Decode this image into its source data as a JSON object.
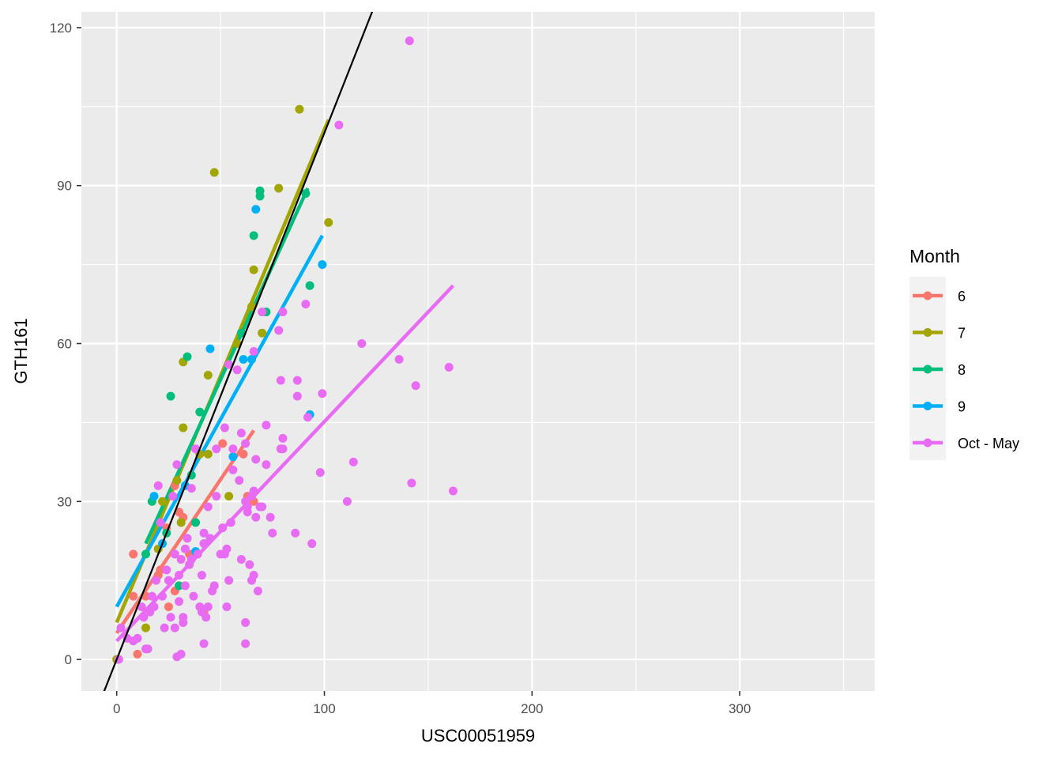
{
  "chart_data": {
    "type": "scatter",
    "xlabel": "USC00051959",
    "ylabel": "GTH161",
    "xlim": [
      -17,
      365
    ],
    "ylim": [
      -6,
      123
    ],
    "x_ticks": [
      0,
      100,
      200,
      300
    ],
    "y_ticks": [
      0,
      30,
      60,
      90,
      120
    ],
    "grid": true,
    "legend": {
      "title": "Month",
      "position": "right"
    },
    "reference_line": {
      "slope": 1,
      "intercept": 0,
      "color": "#000000"
    },
    "series": [
      {
        "name": "6",
        "color": "#F8766D",
        "fit": [
          [
            0,
            5.0
          ],
          [
            66,
            43.5
          ]
        ],
        "points": [
          [
            8,
            20
          ],
          [
            10,
            1
          ],
          [
            8,
            12
          ],
          [
            20,
            16
          ],
          [
            21,
            17
          ],
          [
            24,
            25
          ],
          [
            28,
            33
          ],
          [
            30,
            28
          ],
          [
            32,
            27
          ],
          [
            35,
            20
          ],
          [
            42,
            9
          ],
          [
            51,
            41
          ],
          [
            61,
            39
          ],
          [
            63,
            31
          ],
          [
            66,
            30
          ],
          [
            25,
            10
          ],
          [
            28,
            13
          ],
          [
            14,
            12
          ]
        ]
      },
      {
        "name": "7",
        "color": "#A3A500",
        "fit": [
          [
            0,
            7.0
          ],
          [
            102,
            102.5
          ]
        ],
        "points": [
          [
            0,
            0
          ],
          [
            14,
            6
          ],
          [
            22,
            30
          ],
          [
            29,
            34
          ],
          [
            31,
            26
          ],
          [
            32,
            44
          ],
          [
            32,
            56.5
          ],
          [
            44,
            39
          ],
          [
            44,
            54
          ],
          [
            47,
            92.5
          ],
          [
            54,
            31
          ],
          [
            58,
            60
          ],
          [
            65,
            67
          ],
          [
            66,
            74
          ],
          [
            70,
            62
          ],
          [
            78,
            89.5
          ],
          [
            88,
            104.5
          ],
          [
            102,
            83
          ],
          [
            20,
            21
          ],
          [
            40,
            39
          ]
        ]
      },
      {
        "name": "8",
        "color": "#00BF7D",
        "fit": [
          [
            14,
            22.0
          ],
          [
            92,
            89.5
          ]
        ],
        "points": [
          [
            14,
            20
          ],
          [
            17,
            30
          ],
          [
            24,
            24
          ],
          [
            26,
            50
          ],
          [
            30,
            14
          ],
          [
            34,
            57.5
          ],
          [
            36,
            35
          ],
          [
            40,
            47
          ],
          [
            38,
            26
          ],
          [
            60,
            62
          ],
          [
            66,
            80.5
          ],
          [
            69,
            88
          ],
          [
            69,
            89
          ],
          [
            72,
            66
          ],
          [
            91,
            88.5
          ],
          [
            93,
            71
          ]
        ]
      },
      {
        "name": "9",
        "color": "#00B0F6",
        "fit": [
          [
            0,
            10.0
          ],
          [
            99,
            80.5
          ]
        ],
        "points": [
          [
            18,
            31
          ],
          [
            22,
            22
          ],
          [
            33,
            33
          ],
          [
            38,
            20.5
          ],
          [
            45,
            59
          ],
          [
            56,
            38.5
          ],
          [
            61,
            57
          ],
          [
            65,
            57
          ],
          [
            67,
            85.5
          ],
          [
            93,
            46.5
          ],
          [
            99,
            75
          ]
        ]
      },
      {
        "name": "Oct - May",
        "color": "#E76BF3",
        "fit": [
          [
            0,
            3.5
          ],
          [
            162,
            71.0
          ]
        ],
        "points": [
          [
            1,
            0
          ],
          [
            2,
            6
          ],
          [
            5,
            4
          ],
          [
            8,
            3.5
          ],
          [
            10,
            4
          ],
          [
            12,
            10
          ],
          [
            13,
            8
          ],
          [
            14,
            2
          ],
          [
            15,
            2
          ],
          [
            16,
            9
          ],
          [
            17,
            12
          ],
          [
            18,
            10
          ],
          [
            19,
            15
          ],
          [
            20,
            33
          ],
          [
            21,
            26
          ],
          [
            22,
            12
          ],
          [
            23,
            6
          ],
          [
            24,
            17
          ],
          [
            25,
            15
          ],
          [
            26,
            8
          ],
          [
            27,
            31
          ],
          [
            28,
            20
          ],
          [
            28,
            6
          ],
          [
            29,
            37
          ],
          [
            29,
            0.5
          ],
          [
            30,
            16
          ],
          [
            30,
            11
          ],
          [
            31,
            1
          ],
          [
            31,
            19
          ],
          [
            32,
            8
          ],
          [
            32,
            7
          ],
          [
            33,
            21
          ],
          [
            33,
            14
          ],
          [
            34,
            23
          ],
          [
            35,
            18
          ],
          [
            36,
            32.5
          ],
          [
            36,
            19
          ],
          [
            37,
            12
          ],
          [
            38,
            40
          ],
          [
            39,
            20
          ],
          [
            40,
            10
          ],
          [
            41,
            9
          ],
          [
            41,
            16
          ],
          [
            42,
            24
          ],
          [
            42,
            22
          ],
          [
            42,
            3
          ],
          [
            43,
            8
          ],
          [
            44,
            29
          ],
          [
            44,
            10
          ],
          [
            45,
            23
          ],
          [
            46,
            13
          ],
          [
            47,
            14
          ],
          [
            48,
            31
          ],
          [
            48,
            40
          ],
          [
            50,
            20
          ],
          [
            51,
            25
          ],
          [
            52,
            44
          ],
          [
            52,
            20
          ],
          [
            53,
            10
          ],
          [
            53,
            21
          ],
          [
            54,
            56
          ],
          [
            54,
            15
          ],
          [
            55,
            26
          ],
          [
            56,
            40
          ],
          [
            56,
            36
          ],
          [
            58,
            55
          ],
          [
            59,
            34
          ],
          [
            60,
            19
          ],
          [
            60,
            43
          ],
          [
            62,
            3
          ],
          [
            62,
            7
          ],
          [
            62,
            30
          ],
          [
            62,
            41
          ],
          [
            63,
            29
          ],
          [
            63,
            28
          ],
          [
            64,
            18
          ],
          [
            65,
            31
          ],
          [
            65,
            15
          ],
          [
            66,
            32
          ],
          [
            66,
            16
          ],
          [
            66,
            58.5
          ],
          [
            67,
            38
          ],
          [
            67,
            27
          ],
          [
            68,
            13
          ],
          [
            69,
            29
          ],
          [
            70,
            29
          ],
          [
            70,
            66
          ],
          [
            72,
            44.5
          ],
          [
            72,
            37
          ],
          [
            74,
            27
          ],
          [
            75,
            24
          ],
          [
            78,
            62.5
          ],
          [
            79,
            40
          ],
          [
            79,
            53
          ],
          [
            80,
            42
          ],
          [
            80,
            40
          ],
          [
            80,
            66
          ],
          [
            86,
            24
          ],
          [
            87,
            50
          ],
          [
            87,
            53
          ],
          [
            91,
            67.5
          ],
          [
            92,
            46
          ],
          [
            94,
            22
          ],
          [
            98,
            35.5
          ],
          [
            99,
            50.5
          ],
          [
            107,
            101.5
          ],
          [
            111,
            30
          ],
          [
            114,
            37.5
          ],
          [
            118,
            60
          ],
          [
            136,
            57
          ],
          [
            141,
            117.5
          ],
          [
            142,
            33.5
          ],
          [
            144,
            52
          ],
          [
            160,
            55.5
          ],
          [
            162,
            32
          ]
        ]
      }
    ]
  }
}
